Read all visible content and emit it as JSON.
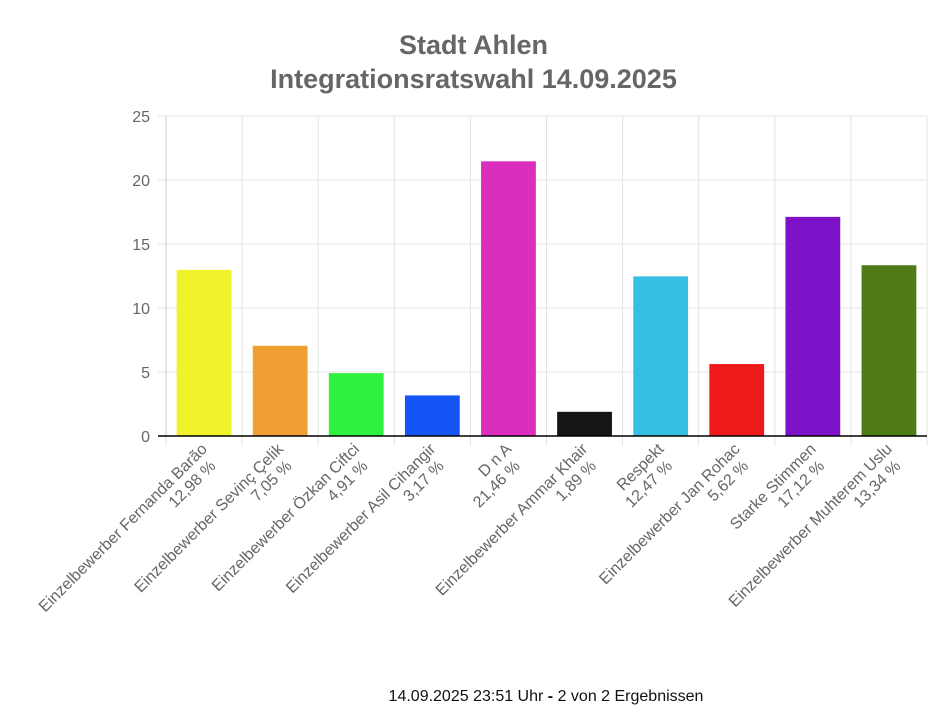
{
  "chart_data": {
    "type": "bar",
    "title_lines": [
      "Stadt Ahlen",
      "Integrationsratswahl 14.09.2025"
    ],
    "categories": [
      {
        "name": "Einzelbewerber  Fernanda Barão",
        "label": "12,98 %"
      },
      {
        "name": "Einzelbewerber  Sevinç Çelik",
        "label": "7,05 %"
      },
      {
        "name": "Einzelbewerber  Özkan Ciftci",
        "label": "4,91 %"
      },
      {
        "name": "Einzelbewerber  Asil Cihangir",
        "label": "3,17 %"
      },
      {
        "name": "D n A",
        "label": "21,46 %"
      },
      {
        "name": "Einzelbewerber  Ammar Khair",
        "label": "1,89 %"
      },
      {
        "name": "Respekt",
        "label": "12,47 %"
      },
      {
        "name": "Einzelbewerber Jan Rohac",
        "label": "5,62 %"
      },
      {
        "name": "Starke Stimmen",
        "label": "17,12 %"
      },
      {
        "name": "Einzelbewerber  Muhterem Uslu",
        "label": "13,34 %"
      }
    ],
    "values": [
      12.98,
      7.05,
      4.91,
      3.17,
      21.46,
      1.89,
      12.47,
      5.62,
      17.12,
      13.34
    ],
    "colors": [
      "#f0f32b",
      "#f0a033",
      "#2ff03f",
      "#1355f5",
      "#db2ebd",
      "#151515",
      "#37bfe3",
      "#ee1a1a",
      "#7e12c8",
      "#4e7a17"
    ],
    "ylim": [
      0,
      25
    ],
    "yticks": [
      "0",
      "5",
      "10",
      "15",
      "20",
      "25"
    ],
    "grid": true,
    "legend": "none"
  },
  "footer": {
    "timestamp": "14.09.2025 23:51 Uhr",
    "separator": "-",
    "count": "2 von 2 Ergebnissen"
  }
}
